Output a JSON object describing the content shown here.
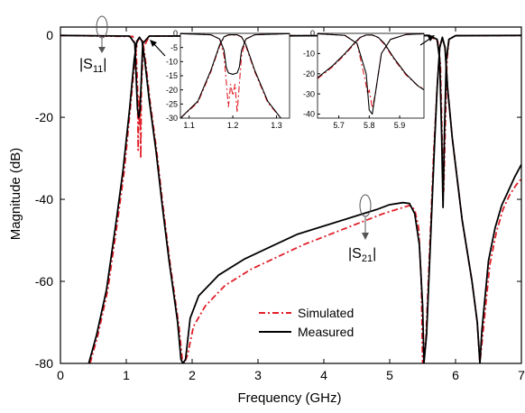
{
  "chart_data": [
    {
      "type": "line",
      "xlabel": "Frequency (GHz)",
      "ylabel": "Magnitude (dB)",
      "xlim": [
        0,
        7
      ],
      "ylim": [
        -80,
        2
      ],
      "xticks": [
        0,
        1,
        2,
        3,
        4,
        5,
        6,
        7
      ],
      "yticks": [
        0,
        -20,
        -40,
        -60,
        -80
      ],
      "grid": false,
      "legend_position": "bottom-right",
      "annotations": [
        {
          "text_main": "|S",
          "text_sub": "11",
          "text_end": "|"
        },
        {
          "text_main": "|S",
          "text_sub": "21",
          "text_end": "|"
        }
      ],
      "series": [
        {
          "name": "Measured",
          "color": "#000000",
          "style": "solid",
          "s11": [
            [
              0.0,
              -0.05
            ],
            [
              1.05,
              -0.2
            ],
            [
              1.13,
              -2
            ],
            [
              1.15,
              -10
            ],
            [
              1.17,
              -18
            ],
            [
              1.19,
              -20
            ],
            [
              1.21,
              -18
            ],
            [
              1.23,
              -10
            ],
            [
              1.25,
              -2
            ],
            [
              1.35,
              -0.2
            ],
            [
              5.6,
              -0.05
            ],
            [
              5.72,
              -1
            ],
            [
              5.76,
              -6
            ],
            [
              5.79,
              -25
            ],
            [
              5.81,
              -42
            ],
            [
              5.83,
              -25
            ],
            [
              5.86,
              -6
            ],
            [
              5.9,
              -1
            ],
            [
              6.0,
              -0.1
            ],
            [
              7.0,
              -0.05
            ]
          ],
          "s21": [
            [
              0.43,
              -80
            ],
            [
              0.55,
              -73
            ],
            [
              0.7,
              -62
            ],
            [
              0.85,
              -45
            ],
            [
              0.95,
              -33
            ],
            [
              1.05,
              -18
            ],
            [
              1.12,
              -6
            ],
            [
              1.16,
              -1.5
            ],
            [
              1.2,
              -0.5
            ],
            [
              1.24,
              -1.5
            ],
            [
              1.28,
              -6
            ],
            [
              1.35,
              -16
            ],
            [
              1.45,
              -28
            ],
            [
              1.55,
              -42
            ],
            [
              1.65,
              -55
            ],
            [
              1.72,
              -63
            ],
            [
              1.78,
              -70
            ],
            [
              1.83,
              -79
            ],
            [
              1.86,
              -80
            ],
            [
              1.9,
              -79
            ],
            [
              1.97,
              -69
            ],
            [
              2.1,
              -63.5
            ],
            [
              2.4,
              -58.5
            ],
            [
              2.8,
              -54.5
            ],
            [
              3.2,
              -51.5
            ],
            [
              3.6,
              -48.5
            ],
            [
              4.0,
              -46.5
            ],
            [
              4.4,
              -44.5
            ],
            [
              4.8,
              -42.5
            ],
            [
              5.0,
              -41.3
            ],
            [
              5.2,
              -40.8
            ],
            [
              5.3,
              -41
            ],
            [
              5.38,
              -43.5
            ],
            [
              5.45,
              -51
            ],
            [
              5.5,
              -66
            ],
            [
              5.52,
              -80
            ],
            [
              5.56,
              -73
            ],
            [
              5.62,
              -50
            ],
            [
              5.68,
              -27
            ],
            [
              5.72,
              -13
            ],
            [
              5.76,
              -3
            ],
            [
              5.8,
              -0.5
            ],
            [
              5.84,
              -3
            ],
            [
              5.88,
              -13
            ],
            [
              5.95,
              -25
            ],
            [
              6.1,
              -45
            ],
            [
              6.25,
              -60
            ],
            [
              6.33,
              -70
            ],
            [
              6.37,
              -80
            ],
            [
              6.4,
              -72
            ],
            [
              6.5,
              -55
            ],
            [
              6.6,
              -47
            ],
            [
              6.7,
              -41.5
            ],
            [
              6.8,
              -38
            ],
            [
              6.9,
              -34.5
            ],
            [
              7.0,
              -31.5
            ]
          ]
        },
        {
          "name": "Simulated",
          "color": "#e0202a",
          "style": "dash-dot",
          "s11": [
            [
              0.0,
              -0.05
            ],
            [
              1.1,
              -0.3
            ],
            [
              1.15,
              -4
            ],
            [
              1.17,
              -12
            ],
            [
              1.18,
              -28
            ],
            [
              1.19,
              -15
            ],
            [
              1.2,
              -22
            ],
            [
              1.21,
              -15
            ],
            [
              1.22,
              -30
            ],
            [
              1.23,
              -12
            ],
            [
              1.26,
              -3
            ],
            [
              1.35,
              -0.2
            ],
            [
              5.6,
              -0.05
            ],
            [
              5.73,
              -1.5
            ],
            [
              5.77,
              -7
            ],
            [
              5.8,
              -28
            ],
            [
              5.82,
              -38
            ],
            [
              5.84,
              -25
            ],
            [
              5.87,
              -6
            ],
            [
              5.9,
              -1
            ],
            [
              6.0,
              -0.1
            ],
            [
              7.0,
              -0.05
            ]
          ],
          "s21": [
            [
              0.45,
              -80
            ],
            [
              0.57,
              -73
            ],
            [
              0.72,
              -62
            ],
            [
              0.87,
              -45
            ],
            [
              0.97,
              -33
            ],
            [
              1.06,
              -18
            ],
            [
              1.13,
              -6
            ],
            [
              1.17,
              -1.5
            ],
            [
              1.2,
              -0.6
            ],
            [
              1.25,
              -1.5
            ],
            [
              1.29,
              -6
            ],
            [
              1.36,
              -16
            ],
            [
              1.46,
              -28
            ],
            [
              1.56,
              -42
            ],
            [
              1.66,
              -55
            ],
            [
              1.73,
              -63
            ],
            [
              1.8,
              -71
            ],
            [
              1.85,
              -79
            ],
            [
              1.88,
              -80
            ],
            [
              1.93,
              -78
            ],
            [
              2.02,
              -71
            ],
            [
              2.2,
              -66
            ],
            [
              2.5,
              -61
            ],
            [
              2.9,
              -57
            ],
            [
              3.3,
              -54
            ],
            [
              3.7,
              -51
            ],
            [
              4.1,
              -48.5
            ],
            [
              4.5,
              -46
            ],
            [
              4.9,
              -43.5
            ],
            [
              5.1,
              -42.5
            ],
            [
              5.3,
              -41.5
            ],
            [
              5.38,
              -42.5
            ],
            [
              5.44,
              -47
            ],
            [
              5.48,
              -60
            ],
            [
              5.5,
              -80
            ],
            [
              5.55,
              -74
            ],
            [
              5.61,
              -51
            ],
            [
              5.67,
              -28
            ],
            [
              5.72,
              -13
            ],
            [
              5.76,
              -3
            ],
            [
              5.8,
              -0.6
            ],
            [
              5.84,
              -3
            ],
            [
              5.88,
              -13
            ],
            [
              5.95,
              -25
            ],
            [
              6.1,
              -45
            ],
            [
              6.25,
              -60
            ],
            [
              6.33,
              -70
            ],
            [
              6.37,
              -80
            ],
            [
              6.42,
              -72
            ],
            [
              6.52,
              -56
            ],
            [
              6.62,
              -48
            ],
            [
              6.72,
              -42.5
            ],
            [
              6.82,
              -39
            ],
            [
              6.92,
              -36.5
            ],
            [
              7.0,
              -35
            ]
          ]
        }
      ]
    },
    {
      "type": "line",
      "xlim": [
        1.08,
        1.33
      ],
      "ylim": [
        -30,
        0
      ],
      "xticks": [
        1.1,
        1.2,
        1.3
      ],
      "xtick_labels": [
        "1.1",
        "1.2",
        "1.3"
      ],
      "yticks": [
        0,
        -5,
        -10,
        -15,
        -20,
        -25,
        -30
      ],
      "series": [
        {
          "name": "Measured",
          "color": "#000000",
          "style": "solid",
          "s21": [
            [
              1.08,
              -30
            ],
            [
              1.12,
              -24
            ],
            [
              1.15,
              -13
            ],
            [
              1.17,
              -4
            ],
            [
              1.18,
              -1.2
            ],
            [
              1.19,
              -0.5
            ],
            [
              1.21,
              -0.5
            ],
            [
              1.22,
              -1.2
            ],
            [
              1.23,
              -4
            ],
            [
              1.25,
              -13
            ],
            [
              1.28,
              -24
            ],
            [
              1.31,
              -30
            ]
          ],
          "s11": [
            [
              1.08,
              -0.1
            ],
            [
              1.15,
              -0.5
            ],
            [
              1.17,
              -2
            ],
            [
              1.18,
              -6
            ],
            [
              1.185,
              -12
            ],
            [
              1.19,
              -14
            ],
            [
              1.2,
              -14.5
            ],
            [
              1.21,
              -14
            ],
            [
              1.215,
              -12
            ],
            [
              1.22,
              -6
            ],
            [
              1.23,
              -2
            ],
            [
              1.25,
              -0.5
            ],
            [
              1.33,
              -0.1
            ]
          ]
        },
        {
          "name": "Simulated",
          "color": "#e0202a",
          "style": "dash-dot",
          "s21": [
            [
              1.08,
              -30
            ],
            [
              1.12,
              -24.5
            ],
            [
              1.15,
              -13.5
            ],
            [
              1.17,
              -4.5
            ],
            [
              1.18,
              -1.3
            ],
            [
              1.19,
              -0.6
            ],
            [
              1.21,
              -0.6
            ],
            [
              1.22,
              -1.3
            ],
            [
              1.23,
              -4.5
            ],
            [
              1.25,
              -13.5
            ],
            [
              1.28,
              -24.5
            ],
            [
              1.31,
              -30
            ]
          ],
          "s11": [
            [
              1.08,
              -0.1
            ],
            [
              1.15,
              -0.5
            ],
            [
              1.17,
              -2
            ],
            [
              1.18,
              -8
            ],
            [
              1.19,
              -26
            ],
            [
              1.195,
              -18
            ],
            [
              1.2,
              -22
            ],
            [
              1.205,
              -18
            ],
            [
              1.21,
              -28
            ],
            [
              1.22,
              -8
            ],
            [
              1.23,
              -2
            ],
            [
              1.25,
              -0.5
            ],
            [
              1.33,
              -0.1
            ]
          ]
        }
      ]
    },
    {
      "type": "line",
      "xlim": [
        5.63,
        5.98
      ],
      "ylim": [
        -42,
        0
      ],
      "xticks": [
        5.7,
        5.8,
        5.9
      ],
      "xtick_labels": [
        "5.7",
        "5.8",
        "5.9"
      ],
      "yticks": [
        0,
        -10,
        -20,
        -30,
        -40
      ],
      "series": [
        {
          "name": "Measured",
          "color": "#000000",
          "style": "solid",
          "s21": [
            [
              5.63,
              -22
            ],
            [
              5.68,
              -16
            ],
            [
              5.72,
              -10
            ],
            [
              5.75,
              -5
            ],
            [
              5.77,
              -2
            ],
            [
              5.79,
              -0.8
            ],
            [
              5.81,
              -0.8
            ],
            [
              5.83,
              -2
            ],
            [
              5.85,
              -5
            ],
            [
              5.88,
              -12
            ],
            [
              5.92,
              -20
            ],
            [
              5.96,
              -26
            ],
            [
              5.98,
              -28
            ]
          ],
          "s11": [
            [
              5.63,
              -0.2
            ],
            [
              5.72,
              -1
            ],
            [
              5.76,
              -5
            ],
            [
              5.79,
              -20
            ],
            [
              5.8,
              -38
            ],
            [
              5.81,
              -40
            ],
            [
              5.82,
              -30
            ],
            [
              5.84,
              -10
            ],
            [
              5.87,
              -3
            ],
            [
              5.92,
              -0.6
            ],
            [
              5.98,
              -0.2
            ]
          ]
        },
        {
          "name": "Simulated",
          "color": "#e0202a",
          "style": "dash-dot",
          "s21": [
            [
              5.63,
              -22.5
            ],
            [
              5.68,
              -16.5
            ],
            [
              5.72,
              -10.5
            ],
            [
              5.75,
              -5.5
            ],
            [
              5.77,
              -2.2
            ],
            [
              5.79,
              -0.9
            ],
            [
              5.81,
              -0.9
            ],
            [
              5.83,
              -2.2
            ],
            [
              5.85,
              -5.5
            ],
            [
              5.88,
              -12.5
            ],
            [
              5.92,
              -20.5
            ],
            [
              5.96,
              -26
            ],
            [
              5.98,
              -27.5
            ]
          ],
          "s11": [
            [
              5.63,
              -0.2
            ],
            [
              5.72,
              -1
            ],
            [
              5.76,
              -5
            ],
            [
              5.785,
              -22
            ],
            [
              5.795,
              -30
            ],
            [
              5.8,
              -28
            ],
            [
              5.81,
              -37
            ],
            [
              5.82,
              -30
            ],
            [
              5.84,
              -10
            ],
            [
              5.87,
              -3
            ],
            [
              5.92,
              -0.6
            ],
            [
              5.98,
              -0.2
            ]
          ]
        }
      ]
    }
  ]
}
